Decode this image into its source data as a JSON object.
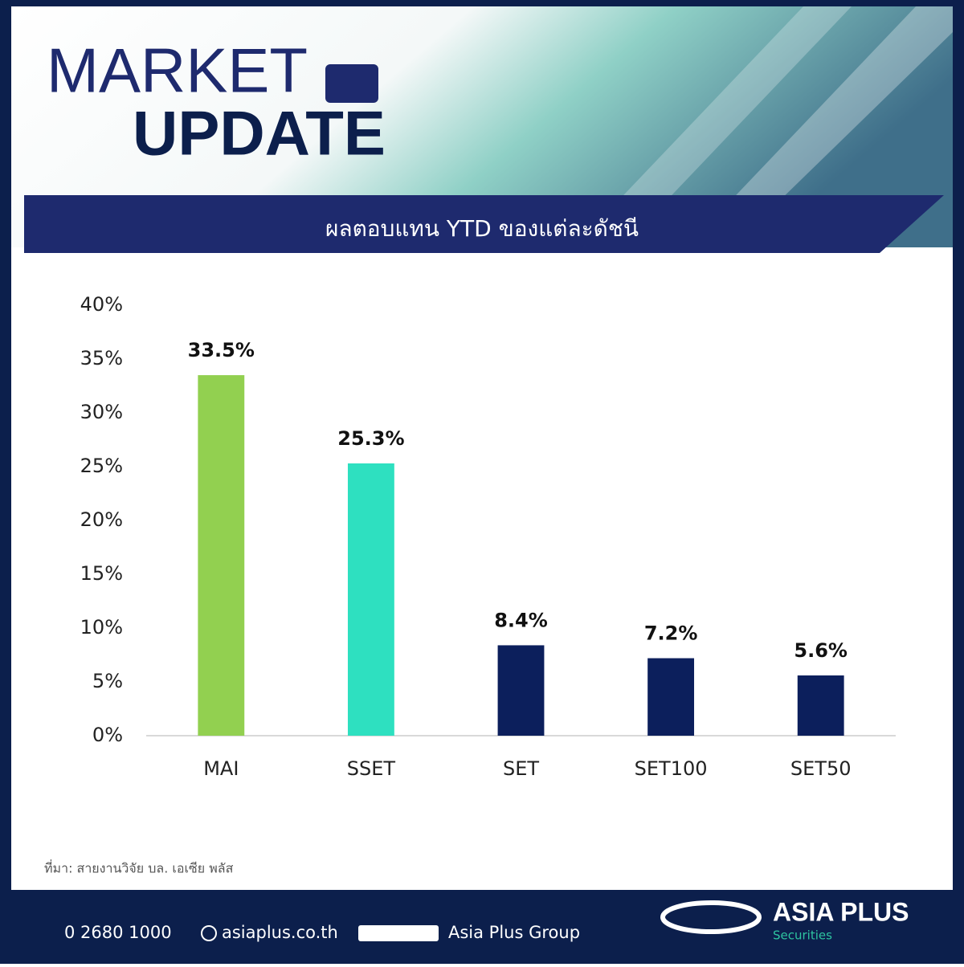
{
  "header": {
    "line1": "MARKET",
    "line2": "UPDATE"
  },
  "chart_data": {
    "type": "bar",
    "title": "ผลตอบแทน YTD ของแต่ละดัชนี",
    "categories": [
      "MAI",
      "SSET",
      "SET",
      "SET100",
      "SET50"
    ],
    "values": [
      33.5,
      25.3,
      8.4,
      7.2,
      5.6
    ],
    "value_labels": [
      "33.5%",
      "25.3%",
      "8.4%",
      "7.2%",
      "5.6%"
    ],
    "colors": [
      "#92d050",
      "#2ee0c0",
      "#0c1f5c",
      "#0c1f5c",
      "#0c1f5c"
    ],
    "ylim": [
      0,
      40
    ],
    "yticks": [
      {
        "value": 0,
        "label": "0%"
      },
      {
        "value": 5,
        "label": "5%"
      },
      {
        "value": 10,
        "label": "10%"
      },
      {
        "value": 15,
        "label": "15%"
      },
      {
        "value": 20,
        "label": "20%"
      },
      {
        "value": 25,
        "label": "25%"
      },
      {
        "value": 30,
        "label": "30%"
      },
      {
        "value": 35,
        "label": "35%"
      },
      {
        "value": 40,
        "label": "40%"
      }
    ],
    "grid": false
  },
  "source": "ที่มา: สายงานวิจัย บล. เอเซีย พลัส",
  "footer": {
    "phone": "0 2680 1000",
    "website": "asiaplus.co.th",
    "social": "Asia Plus Group",
    "brand": "ASIA PLUS",
    "brand_sub": "Securities"
  }
}
